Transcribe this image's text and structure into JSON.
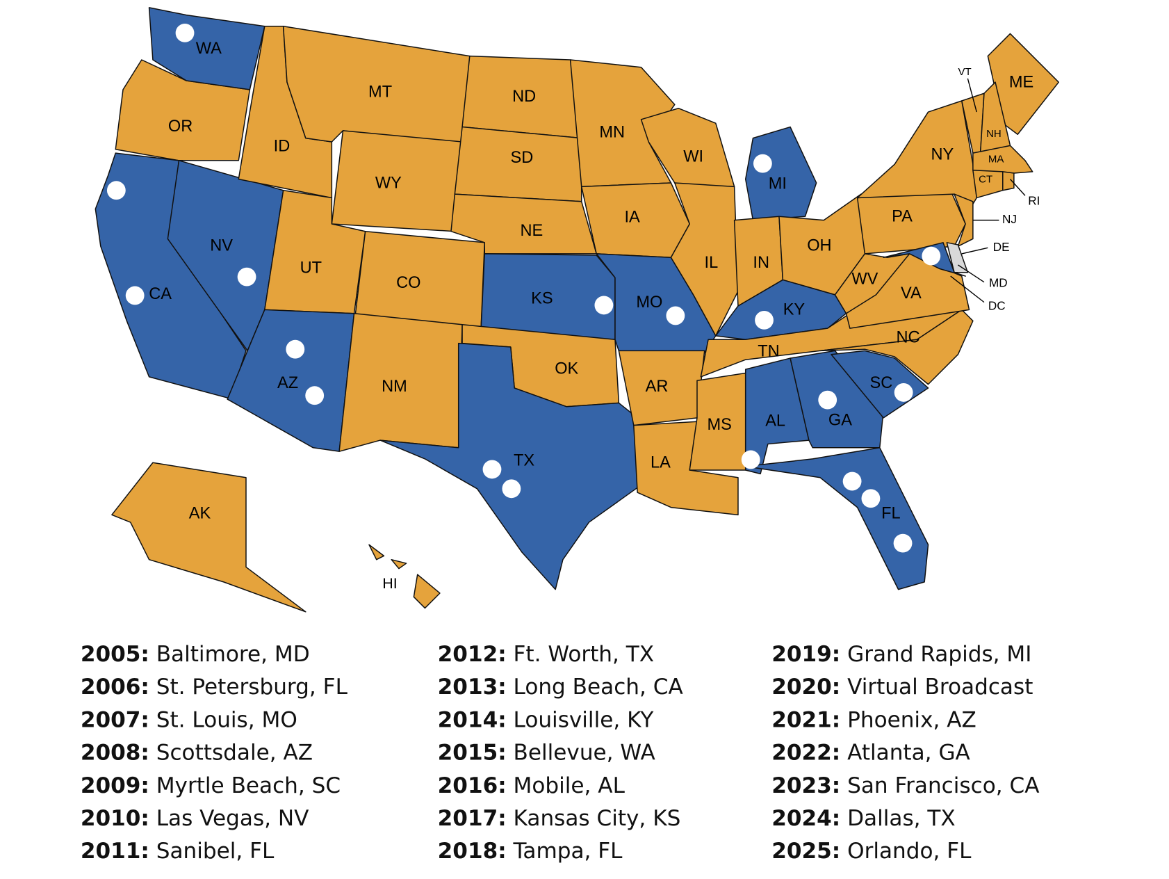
{
  "states": [
    "WA",
    "OR",
    "CA",
    "NV",
    "ID",
    "MT",
    "WY",
    "UT",
    "CO",
    "AZ",
    "NM",
    "ND",
    "SD",
    "NE",
    "KS",
    "OK",
    "TX",
    "MN",
    "IA",
    "MO",
    "AR",
    "LA",
    "WI",
    "IL",
    "MI",
    "IN",
    "OH",
    "KY",
    "TN",
    "MS",
    "AL",
    "GA",
    "FL",
    "SC",
    "NC",
    "VA",
    "WV",
    "PA",
    "NY",
    "ME",
    "VT",
    "NH",
    "MA",
    "CT",
    "RI",
    "NJ",
    "DE",
    "MD",
    "DC",
    "AK",
    "HI"
  ],
  "events": [
    {
      "year": "2005:",
      "city": "Baltimore, MD"
    },
    {
      "year": "2006:",
      "city": "St. Petersburg, FL"
    },
    {
      "year": "2007:",
      "city": "St. Louis, MO"
    },
    {
      "year": "2008:",
      "city": "Scottsdale, AZ"
    },
    {
      "year": "2009:",
      "city": "Myrtle Beach, SC"
    },
    {
      "year": "2010:",
      "city": "Las Vegas, NV"
    },
    {
      "year": "2011:",
      "city": "Sanibel, FL"
    },
    {
      "year": "2012:",
      "city": "Ft. Worth, TX"
    },
    {
      "year": "2013:",
      "city": "Long Beach, CA"
    },
    {
      "year": "2014:",
      "city": "Louisville, KY"
    },
    {
      "year": "2015:",
      "city": "Bellevue, WA"
    },
    {
      "year": "2016:",
      "city": "Mobile, AL"
    },
    {
      "year": "2017:",
      "city": "Kansas City, KS"
    },
    {
      "year": "2018:",
      "city": "Tampa, FL"
    },
    {
      "year": "2019:",
      "city": "Grand Rapids, MI"
    },
    {
      "year": "2020:",
      "city": "Virtual Broadcast"
    },
    {
      "year": "2021:",
      "city": "Phoenix, AZ"
    },
    {
      "year": "2022:",
      "city": "Atlanta, GA"
    },
    {
      "year": "2023:",
      "city": "San Francisco, CA"
    },
    {
      "year": "2024:",
      "city": "Dallas, TX"
    },
    {
      "year": "2025:",
      "city": "Orlando, FL"
    }
  ]
}
